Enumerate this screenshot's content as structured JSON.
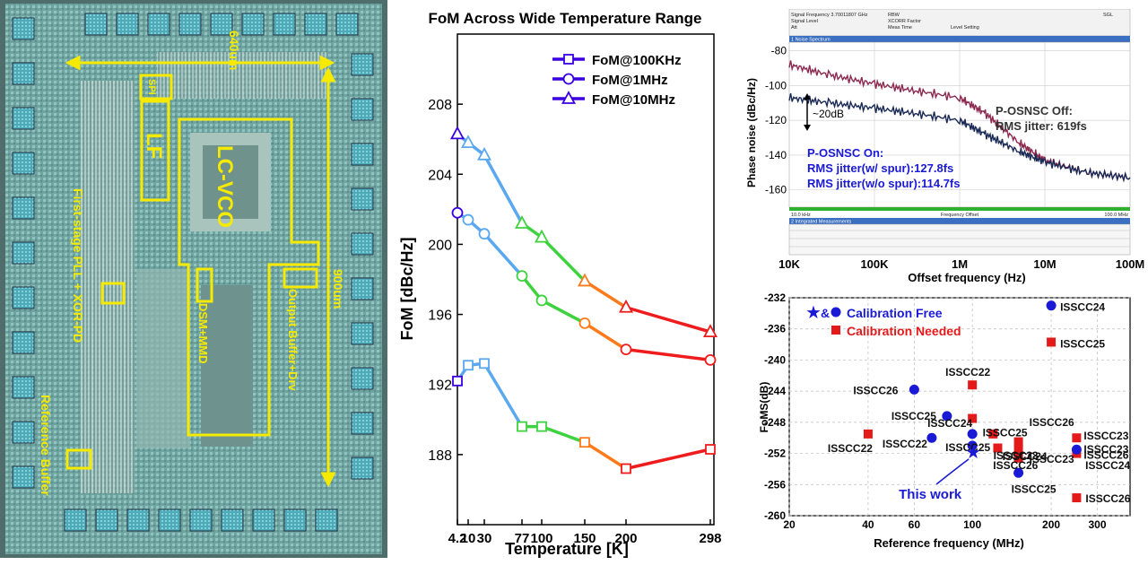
{
  "die_photo": {
    "labels": {
      "width_dim": "640um",
      "height_dim": "900um",
      "spi": "SPI",
      "lf": "LF",
      "lc_vco": "LC-VCO",
      "dsm_mmd": "DSM+MMD",
      "output_buffer": "Output Buffer+Drv",
      "first_stage": "First-stage PLL + XOR-PD",
      "ref_buffer": "Reference Buffer"
    },
    "colors": {
      "annotation": "#f5ea00",
      "die": "#7eb0ad"
    }
  },
  "chart_data": [
    {
      "type": "line",
      "title": "FoM Across Wide Temperature Range",
      "xlabel": "Temperature [K]",
      "ylabel": "FoM [dBc/Hz]",
      "x_ticks": [
        "4.2",
        "10",
        "30",
        "77",
        "100",
        "150",
        "200",
        "298"
      ],
      "x_tick_values": [
        4.2,
        10,
        30,
        77,
        100,
        150,
        200,
        298
      ],
      "ylim": [
        184,
        212
      ],
      "y_ticks": [
        188,
        192,
        196,
        200,
        204,
        208
      ],
      "series": [
        {
          "name": "FoM@100KHz",
          "marker": "square",
          "color": "#3a00e0",
          "x": [
            4.2,
            10,
            30,
            77,
            100,
            150,
            200,
            298
          ],
          "y": [
            192.2,
            193.1,
            193.2,
            189.6,
            189.6,
            188.7,
            187.2,
            188.3
          ]
        },
        {
          "name": "FoM@1MHz",
          "marker": "circle",
          "color": "#3a00e0",
          "x": [
            4.2,
            10,
            30,
            77,
            100,
            150,
            200,
            298
          ],
          "y": [
            201.8,
            201.4,
            200.6,
            198.2,
            196.8,
            195.5,
            194.0,
            193.4
          ]
        },
        {
          "name": "FoM@10MHz",
          "marker": "triangle",
          "color": "#3a00e0",
          "x": [
            4.2,
            10,
            30,
            77,
            100,
            150,
            200,
            298
          ],
          "y": [
            206.3,
            205.8,
            205.1,
            201.2,
            200.4,
            197.9,
            196.4,
            195.0
          ]
        }
      ],
      "segment_colors": [
        "#5aa8f0",
        "#5aa8f0",
        "#5aa8f0",
        "#3ed23e",
        "#3ed23e",
        "#ff7a1a",
        "#ee1c1c"
      ],
      "legend": "top-right"
    },
    {
      "type": "line",
      "xlabel": "Offset frequency (Hz)",
      "ylabel": "Phase noise (dBc/Hz)",
      "x_scale": "log",
      "x_ticks": [
        "10K",
        "100K",
        "1M",
        "10M",
        "100M"
      ],
      "x_tick_values": [
        10000,
        100000,
        1000000,
        10000000,
        100000000
      ],
      "ylim": [
        -170,
        -75
      ],
      "y_ticks": [
        -80,
        -100,
        -120,
        -140,
        -160
      ],
      "series": [
        {
          "label": "P-OSNSC Off",
          "color": "#8c2a4e",
          "x": [
            10000,
            30000,
            100000,
            300000,
            1000000,
            2000000,
            5000000,
            10000000,
            30000000,
            100000000
          ],
          "y": [
            -88,
            -94,
            -99,
            -103,
            -107,
            -116,
            -133,
            -143,
            -150,
            -153
          ]
        },
        {
          "label": "P-OSNSC On",
          "color": "#1a2a55",
          "x": [
            10000,
            30000,
            100000,
            300000,
            1000000,
            2000000,
            5000000,
            10000000,
            30000000,
            100000000
          ],
          "y": [
            -107,
            -110,
            -113,
            -116,
            -120,
            -128,
            -138,
            -144,
            -150,
            -153
          ]
        }
      ],
      "annotations": {
        "delta": "~20dB",
        "off_title": "P-OSNSC Off:",
        "off_jitter": "RMS jitter: 619fs",
        "on_title": "P-OSNSC On:",
        "on_jitter_spur": "RMS jitter(w/ spur):127.8fs",
        "on_jitter_nospur": "RMS jitter(w/o spur):114.7fs"
      },
      "instrument_text": {
        "signal_frequency": "Signal Frequency 3.70011807 GHz",
        "signal_level": "Signal Level",
        "att": "Att",
        "rbw": "RBW",
        "xcorr": "XCORR Factor",
        "meas_time": "Meas Time",
        "level_setting": "Level Setting",
        "sgl": "SGL",
        "panel1": "1 Noise Spectrum",
        "panel2": "2 Integrated Measurements",
        "start": "10.0 kHz",
        "mid": "Frequency Offset",
        "stop": "100.0 MHz"
      }
    },
    {
      "type": "scatter",
      "xlabel": "Reference frequency (MHz)",
      "ylabel": "FoMS(dB)",
      "x_scale": "log",
      "x_ticks": [
        "20",
        "40",
        "60",
        "100",
        "200",
        "300"
      ],
      "x_tick_values": [
        20,
        40,
        60,
        100,
        200,
        300
      ],
      "ylim": [
        -260,
        -232
      ],
      "y_ticks": [
        -232,
        -236,
        -240,
        -244,
        -248,
        -252,
        -256,
        -260
      ],
      "legend_entries": {
        "free": "Calibration Free",
        "needed": "Calibration Needed",
        "amp": "&"
      },
      "this_work": {
        "label": "This work",
        "x": 100,
        "y": -251.8,
        "color": "#1a1ad6"
      },
      "calibration_free": {
        "color": "#1a1ad6",
        "points": [
          {
            "x": 200,
            "y": -233.0,
            "label": "ISSCC24"
          },
          {
            "x": 60,
            "y": -243.8,
            "label": "ISSCC26"
          },
          {
            "x": 80,
            "y": -247.2,
            "label": "ISSCC25"
          },
          {
            "x": 100,
            "y": -249.5,
            "label": "ISSCC24"
          },
          {
            "x": 70,
            "y": -250.0,
            "label": "ISSCC22"
          },
          {
            "x": 100,
            "y": -251.0,
            "label": "ISSCC25"
          },
          {
            "x": 150,
            "y": -254.5,
            "label": "ISSCC25"
          },
          {
            "x": 250,
            "y": -251.5,
            "label": "ISSCC23"
          }
        ]
      },
      "calibration_needed": {
        "color": "#e41a1a",
        "points": [
          {
            "x": 200,
            "y": -237.7,
            "label": "ISSCC25"
          },
          {
            "x": 100,
            "y": -243.2,
            "label": "ISSCC22"
          },
          {
            "x": 40,
            "y": -249.5,
            "label": "ISSCC22"
          },
          {
            "x": 100,
            "y": -247.5,
            "label": ""
          },
          {
            "x": 120,
            "y": -249.5,
            "label": ""
          },
          {
            "x": 125,
            "y": -251.3,
            "label": ""
          },
          {
            "x": 150,
            "y": -250.5,
            "label": "ISSCC25"
          },
          {
            "x": 150,
            "y": -251.5,
            "label": "ISSCC23"
          },
          {
            "x": 150,
            "y": -252.6,
            "label": "ISSCC24"
          },
          {
            "x": 250,
            "y": -250.0,
            "label": "ISSCC23"
          },
          {
            "x": 250,
            "y": -252.0,
            "label": "ISSCC26"
          },
          {
            "x": 250,
            "y": -257.7,
            "label": "ISSCC26"
          }
        ]
      },
      "extra_labels": [
        {
          "text": "ISSCC26",
          "x": 165,
          "y": -248.5
        },
        {
          "text": "ISSCC26",
          "x": 120,
          "y": -254.0
        },
        {
          "text": "ISSCC24",
          "x": 270,
          "y": -254.0
        },
        {
          "text": "ISSCC23",
          "x": 165,
          "y": -253.2
        }
      ]
    }
  ]
}
